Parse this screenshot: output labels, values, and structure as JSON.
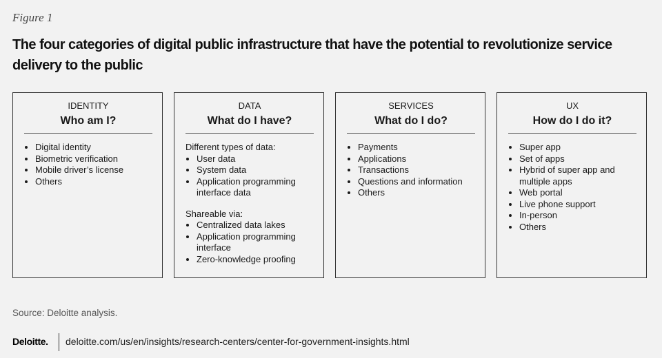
{
  "figure_label": "Figure 1",
  "title": "The four categories of digital public infrastructure that have the potential to revolutionize service delivery to the public",
  "columns": [
    {
      "category": "IDENTITY",
      "question": "Who am I?",
      "sections": [
        {
          "items": [
            "Digital identity",
            "Biometric verification",
            "Mobile driver’s license",
            "Others"
          ]
        }
      ]
    },
    {
      "category": "DATA",
      "question": "What do I have?",
      "sections": [
        {
          "heading": "Different types of data:",
          "items": [
            "User data",
            "System data",
            "Application programming interface data"
          ]
        },
        {
          "heading": "Shareable via:",
          "items": [
            "Centralized data lakes",
            "Application programming interface",
            "Zero-knowledge proofing"
          ]
        }
      ]
    },
    {
      "category": "SERVICES",
      "question": "What do I do?",
      "sections": [
        {
          "items": [
            "Payments",
            "Applications",
            "Transactions",
            "Questions and information",
            "Others"
          ]
        }
      ]
    },
    {
      "category": "UX",
      "question": "How do I do it?",
      "sections": [
        {
          "items": [
            "Super app",
            "Set of apps",
            "Hybrid of super app and multiple apps",
            "Web portal",
            "Live phone support",
            "In-person",
            "Others"
          ]
        }
      ]
    }
  ],
  "source": "Source: Deloitte analysis.",
  "footer": {
    "brand": "Deloitte.",
    "url": "deloitte.com/us/en/insights/research-centers/center-for-government-insights.html"
  }
}
